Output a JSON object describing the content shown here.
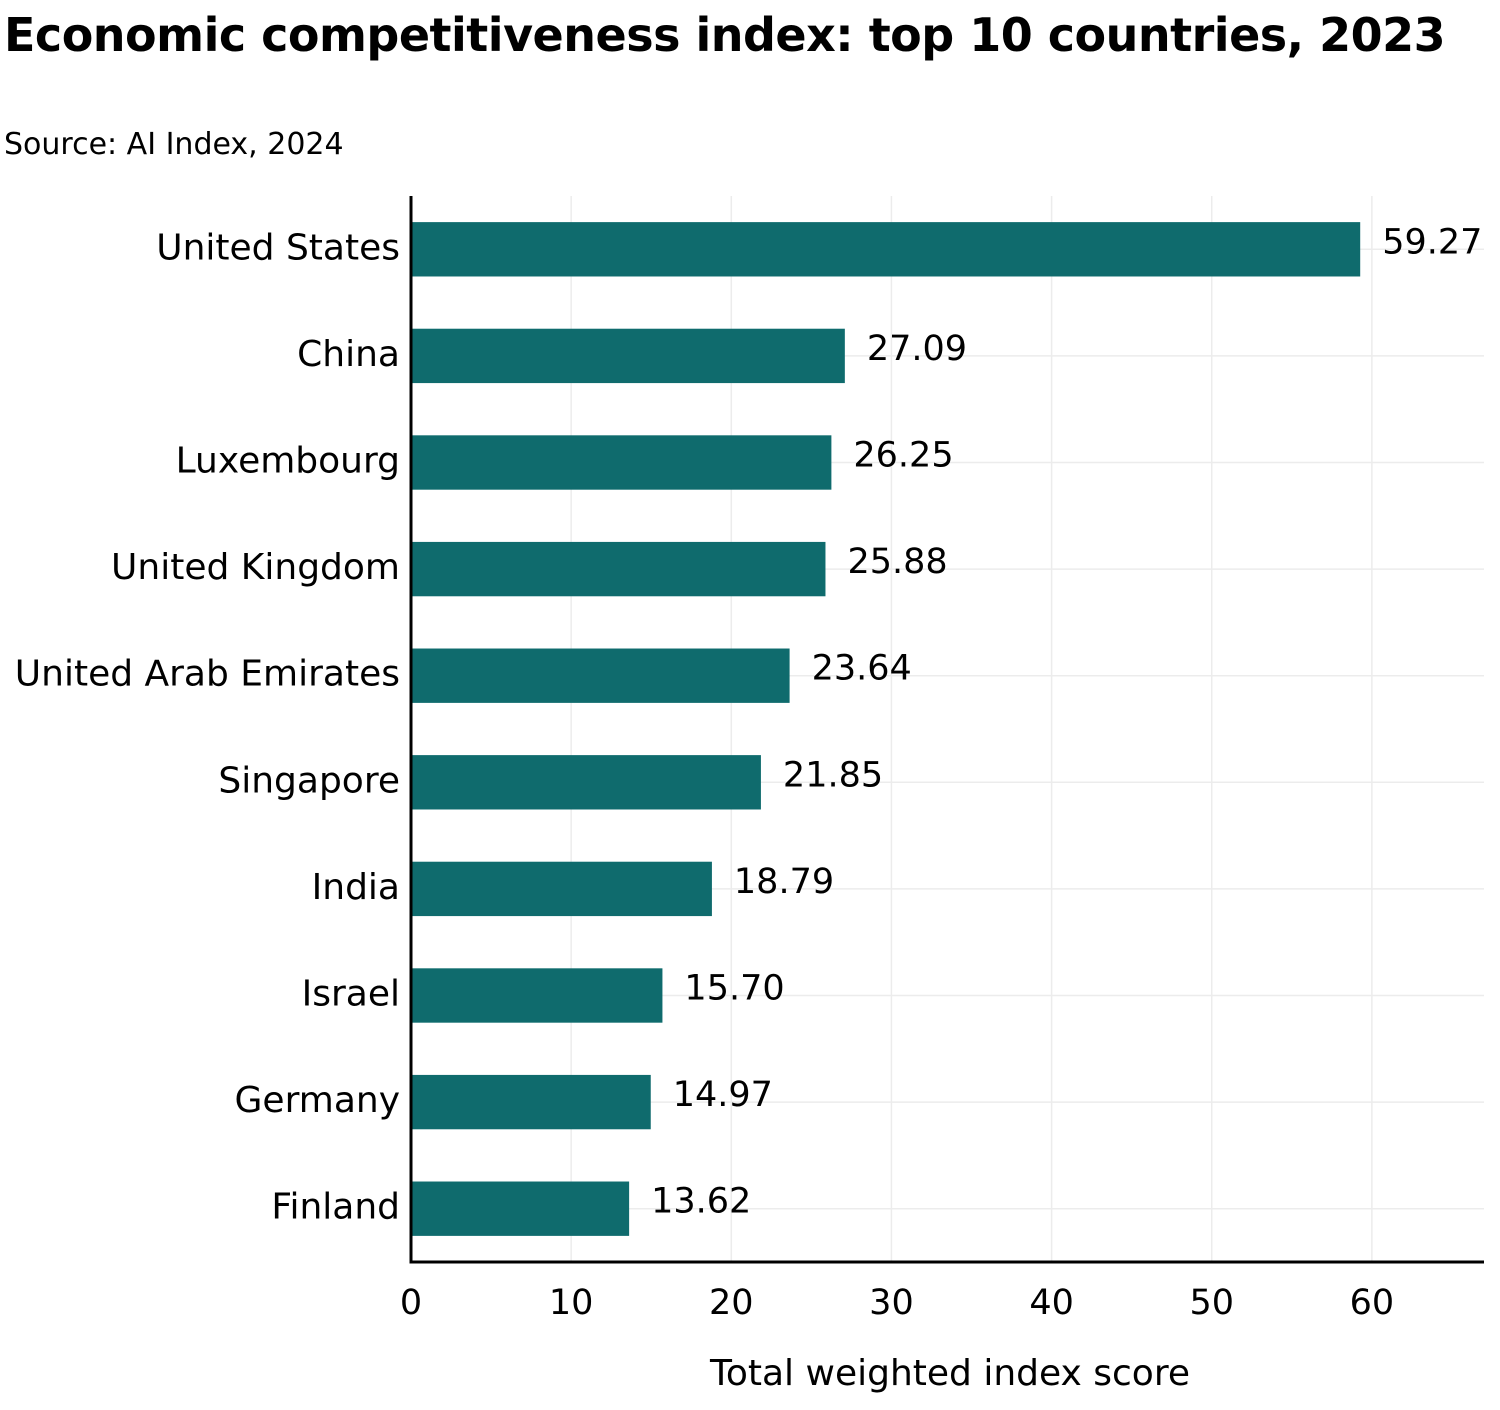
{
  "chart_data": {
    "type": "bar",
    "orientation": "horizontal",
    "title": "Economic competitiveness index: top 10 countries, 2023",
    "subtitle": "Source: AI Index, 2024",
    "xlabel": "Total weighted index score",
    "ylabel": "",
    "xlim": [
      0,
      67
    ],
    "xticks": [
      0,
      10,
      20,
      30,
      40,
      50,
      60
    ],
    "grid": true,
    "bar_color": "#0f6b6d",
    "categories": [
      "United States",
      "China",
      "Luxembourg",
      "United Kingdom",
      "United Arab Emirates",
      "Singapore",
      "India",
      "Israel",
      "Germany",
      "Finland"
    ],
    "values": [
      59.27,
      27.09,
      26.25,
      25.88,
      23.64,
      21.85,
      18.79,
      15.7,
      14.97,
      13.62
    ],
    "value_labels": [
      "59.27",
      "27.09",
      "26.25",
      "25.88",
      "23.64",
      "21.85",
      "18.79",
      "15.70",
      "14.97",
      "13.62"
    ]
  }
}
